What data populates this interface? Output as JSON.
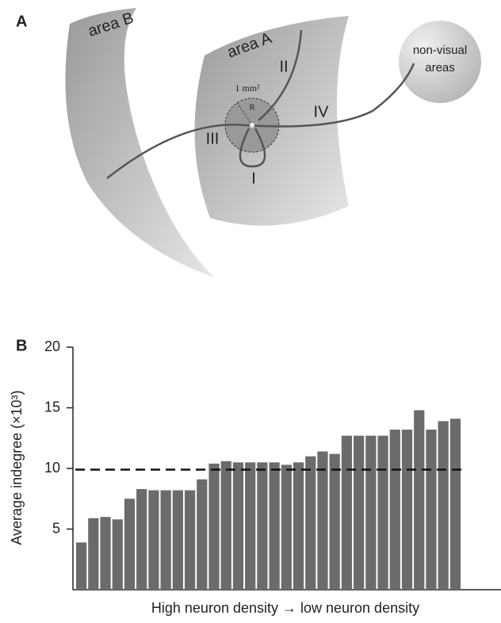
{
  "panel_a": {
    "label": "A",
    "area_b": "area B",
    "area_a": "area A",
    "non_visual": [
      "non-visual",
      "areas"
    ],
    "scale": "1 mm²",
    "radius": "R",
    "paths": [
      "I",
      "II",
      "III",
      "IV"
    ]
  },
  "chart_data": {
    "type": "bar",
    "panel_label": "B",
    "ylabel": "Average indegree (×10³)",
    "xlabel": "High neuron density → low neuron density",
    "values": [
      3.9,
      5.9,
      6.0,
      5.8,
      7.5,
      8.3,
      8.2,
      8.2,
      8.2,
      8.2,
      9.1,
      10.4,
      10.6,
      10.5,
      10.5,
      10.5,
      10.5,
      10.3,
      10.5,
      11.0,
      11.4,
      11.2,
      12.7,
      12.7,
      12.7,
      12.7,
      13.2,
      13.2,
      14.8,
      13.2,
      13.9,
      14.1
    ],
    "color": "#6b6b6b",
    "ylim": [
      0,
      20
    ],
    "yticks": [
      5,
      10,
      15,
      20
    ],
    "reference_line": 9.9
  }
}
